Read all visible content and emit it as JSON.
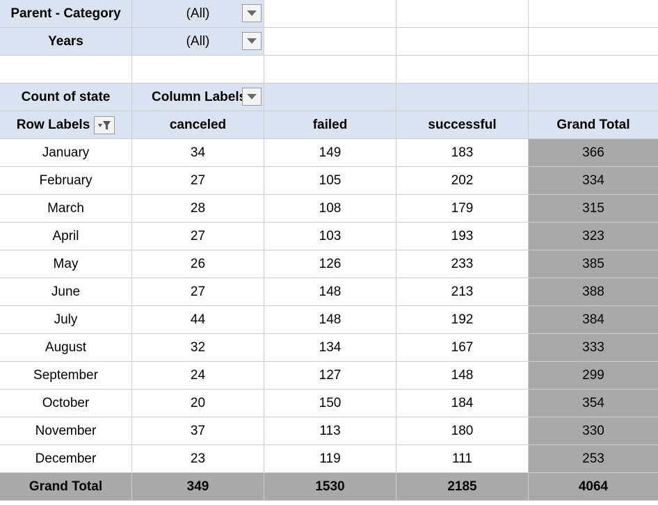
{
  "filters": [
    {
      "label": "Parent - Category",
      "value": "(All)"
    },
    {
      "label": "Years",
      "value": "(All)"
    }
  ],
  "pivot": {
    "value_field": "Count of state",
    "column_labels": "Column Labels",
    "row_labels": "Row Labels",
    "columns": [
      "canceled",
      "failed",
      "successful",
      "Grand Total"
    ],
    "rows": [
      {
        "label": "January",
        "values": [
          "34",
          "149",
          "183",
          "366"
        ]
      },
      {
        "label": "February",
        "values": [
          "27",
          "105",
          "202",
          "334"
        ]
      },
      {
        "label": "March",
        "values": [
          "28",
          "108",
          "179",
          "315"
        ]
      },
      {
        "label": "April",
        "values": [
          "27",
          "103",
          "193",
          "323"
        ]
      },
      {
        "label": "May",
        "values": [
          "26",
          "126",
          "233",
          "385"
        ]
      },
      {
        "label": "June",
        "values": [
          "27",
          "148",
          "213",
          "388"
        ]
      },
      {
        "label": "July",
        "values": [
          "44",
          "148",
          "192",
          "384"
        ]
      },
      {
        "label": "August",
        "values": [
          "32",
          "134",
          "167",
          "333"
        ]
      },
      {
        "label": "September",
        "values": [
          "24",
          "127",
          "148",
          "299"
        ]
      },
      {
        "label": "October",
        "values": [
          "20",
          "150",
          "184",
          "354"
        ]
      },
      {
        "label": "November",
        "values": [
          "37",
          "113",
          "180",
          "330"
        ]
      },
      {
        "label": "December",
        "values": [
          "23",
          "119",
          "111",
          "253"
        ]
      }
    ],
    "grand_total": {
      "label": "Grand Total",
      "values": [
        "349",
        "1530",
        "2185",
        "4064"
      ]
    }
  },
  "colors": {
    "header_bg": "#dbe3f1",
    "grand_total_bg": "#a9a9a9"
  }
}
